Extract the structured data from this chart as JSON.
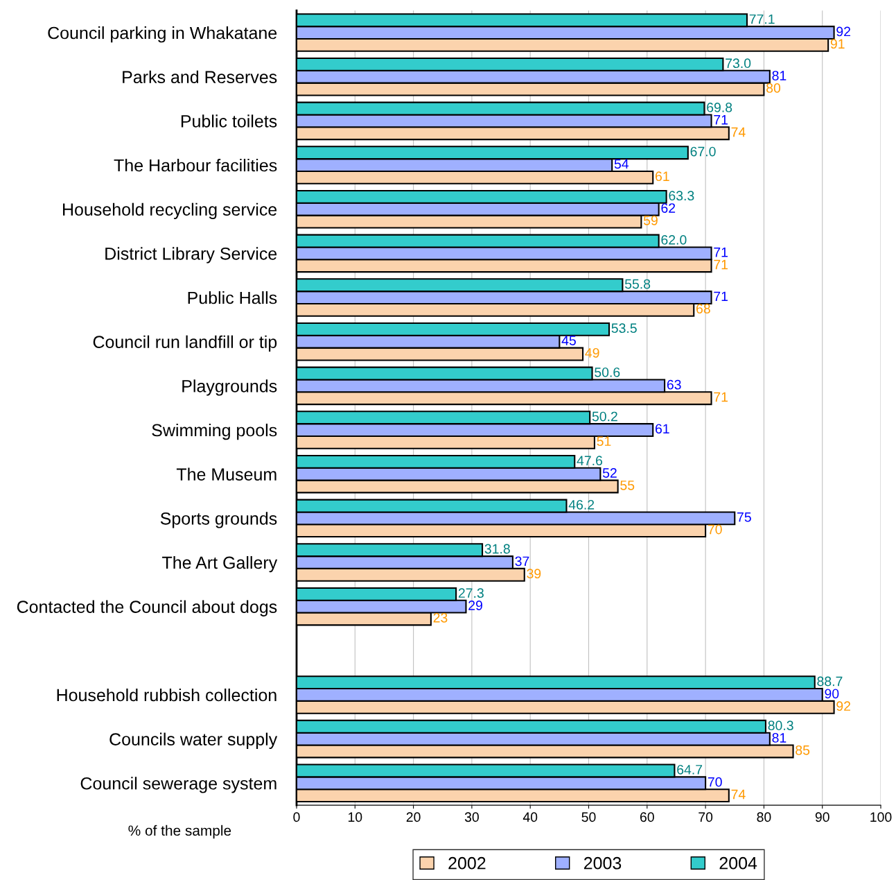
{
  "chart_data": {
    "type": "bar",
    "orientation": "horizontal",
    "xlabel": "% of the sample",
    "categories": [
      "Council parking in Whakatane",
      "Parks and Reserves",
      "Public toilets",
      "The Harbour facilities",
      "Household recycling service",
      "District Library Service",
      "Public Halls",
      "Council run landfill or tip",
      "Playgrounds",
      "Swimming pools",
      "The Museum",
      "Sports grounds",
      "The Art Gallery",
      "Contacted the Council about dogs",
      null,
      "Household rubbish collection",
      "Councils water supply",
      "Council sewerage system"
    ],
    "series": [
      {
        "name": "2002",
        "color": "#fbd3ad",
        "values": [
          91,
          80,
          74,
          61,
          59,
          71,
          68,
          49,
          71,
          51,
          55,
          70,
          39,
          23,
          null,
          92,
          85,
          74
        ],
        "value_labels": [
          "91",
          "80",
          "74",
          "61",
          "59",
          "71",
          "68",
          "49",
          "71",
          "51",
          "55",
          "70",
          "39",
          "23",
          null,
          "92",
          "85",
          "74"
        ]
      },
      {
        "name": "2003",
        "color": "#9fb0ff",
        "values": [
          92,
          81,
          71,
          54,
          62,
          71,
          71,
          45,
          63,
          61,
          52,
          75,
          37,
          29,
          null,
          90,
          81,
          70
        ],
        "value_labels": [
          "92",
          "81",
          "71",
          "54",
          "62",
          "71",
          "71",
          "45",
          "63",
          "61",
          "52",
          "75",
          "37",
          "29",
          null,
          "90",
          "81",
          "70"
        ]
      },
      {
        "name": "2004",
        "color": "#33cccc",
        "values": [
          77.1,
          73.0,
          69.8,
          67.0,
          63.3,
          62.0,
          55.8,
          53.5,
          50.6,
          50.2,
          47.6,
          46.2,
          31.8,
          27.3,
          null,
          88.7,
          80.3,
          64.7
        ],
        "value_labels": [
          "77.1",
          "73.0",
          "69.8",
          "67.0",
          "63.3",
          "62.0",
          "55.8",
          "53.5",
          "50.6",
          "50.2",
          "47.6",
          "46.2",
          "31.8",
          "27.3",
          null,
          "88.7",
          "80.3",
          "64.7"
        ]
      }
    ],
    "xlim": [
      0,
      100
    ],
    "xticks": [
      0,
      10,
      20,
      30,
      40,
      50,
      60,
      70,
      80,
      90,
      100
    ],
    "grid": "x",
    "legend": "bottom"
  }
}
